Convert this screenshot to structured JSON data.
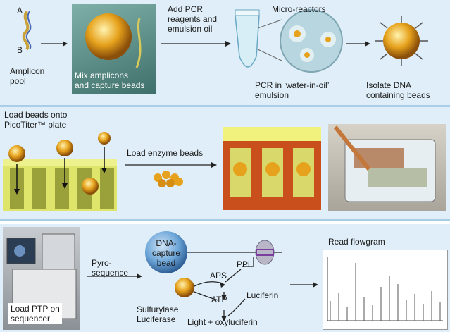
{
  "panel1": {
    "label_a": "A",
    "label_b": "B",
    "amplicon_pool": "Amplicon\npool",
    "mix_caption": "Mix amplicons\nand capture beads",
    "add_pcr": "Add PCR\nreagents and\nemulsion oil",
    "micro_reactors": "Micro-reactors",
    "pcr_caption": "PCR in ‘water-in-oil’\nemulsion",
    "isolate_caption": "Isolate DNA\ncontaining beads"
  },
  "panel2": {
    "load_beads": "Load beads onto\nPicoTiter™ plate",
    "load_enzyme": "Load enzyme beads"
  },
  "panel3": {
    "load_ptp": "Load PTP on\nsequencer",
    "pyro": "Pyro-\nsequence",
    "dna_bead": "DNA-\ncapture\nbead",
    "ppi": "PPi",
    "aps": "APS",
    "atp": "ATP",
    "luciferin": "Luciferin",
    "enzymes": "Sulfurylase\nLuciferase",
    "light": "Light + oxyluciferin",
    "read_flowgram": "Read flowgram"
  },
  "colors": {
    "panel_bg": "#dfeef8",
    "separator": "#a9cfe8",
    "bead_orange": "#e6a21c",
    "plate_yellow": "#e8ee7a",
    "dna_bead_blue": "#6da6d8"
  }
}
